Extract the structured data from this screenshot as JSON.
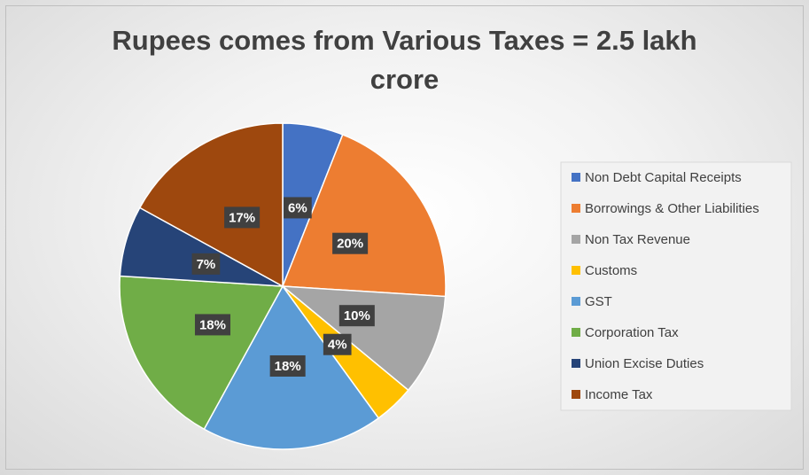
{
  "chart_data": {
    "type": "pie",
    "title": "Rupees comes from Various Taxes = 2.5 lakh crore",
    "categories": [
      "Non Debt Capital Receipts",
      "Borrowings & Other Liabilities",
      "Non Tax Revenue",
      "Customs",
      "GST",
      "Corporation Tax",
      "Union Excise Duties",
      "Income Tax"
    ],
    "values": [
      6,
      20,
      10,
      4,
      18,
      18,
      7,
      17
    ],
    "value_labels": [
      "6%",
      "20%",
      "10%",
      "4%",
      "18%",
      "18%",
      "7%",
      "17%"
    ],
    "colors": [
      "#4472c4",
      "#ed7d31",
      "#a5a5a5",
      "#ffc000",
      "#5b9bd5",
      "#70ad47",
      "#264478",
      "#9e480e"
    ],
    "legend": "right"
  }
}
